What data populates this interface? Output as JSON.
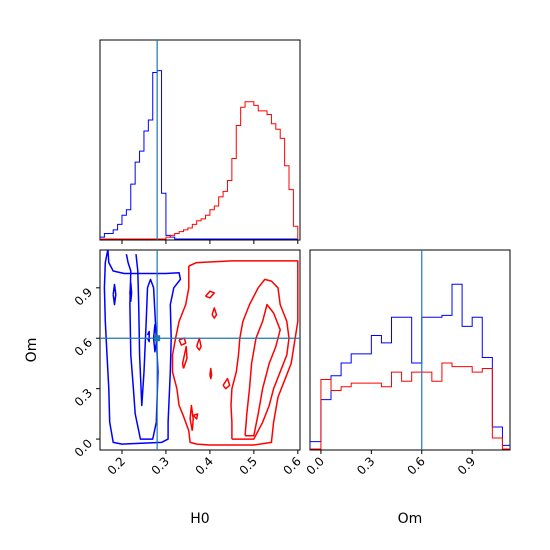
{
  "chart_data": {
    "type": "corner",
    "parameters": [
      "H0",
      "Om"
    ],
    "truths": {
      "H0": 0.28,
      "Om": 0.6
    },
    "colors": {
      "series_a": "#0000ff",
      "series_b": "#ff0000",
      "truth": "#1f77b4"
    },
    "axes": {
      "H0": {
        "label": "H0",
        "range": [
          0.15,
          0.605
        ],
        "ticks": [
          "0.2",
          "0.3",
          "0.4",
          "0.5",
          "0.6"
        ]
      },
      "Om": {
        "label": "Om",
        "range": [
          -0.065,
          1.125
        ],
        "ticks": [
          "0.0",
          "0.3",
          "0.6",
          "0.9"
        ]
      }
    },
    "hist_H0": {
      "bin_edges": [
        0.15,
        0.16,
        0.17,
        0.18,
        0.19,
        0.2,
        0.21,
        0.22,
        0.23,
        0.24,
        0.25,
        0.26,
        0.27,
        0.28,
        0.29,
        0.3,
        0.31,
        0.32,
        0.33,
        0.34,
        0.35,
        0.36,
        0.37,
        0.38,
        0.39,
        0.4,
        0.41,
        0.42,
        0.43,
        0.44,
        0.45,
        0.46,
        0.47,
        0.48,
        0.49,
        0.5,
        0.51,
        0.52,
        0.53,
        0.54,
        0.55,
        0.56,
        0.57,
        0.58,
        0.59,
        0.6
      ],
      "series": [
        {
          "values": [
            0.01,
            0.03,
            0.03,
            0.05,
            0.08,
            0.13,
            0.16,
            0.3,
            0.42,
            0.48,
            0.59,
            0.65,
            0.91,
            0.92,
            0.25,
            0.02,
            0.01,
            0,
            0,
            0,
            0,
            0,
            0,
            0,
            0,
            0,
            0,
            0,
            0,
            0,
            0,
            0,
            0,
            0,
            0,
            0,
            0,
            0,
            0,
            0,
            0,
            0,
            0,
            0,
            0
          ]
        },
        {
          "values": [
            0,
            0,
            0,
            0,
            0,
            0,
            0,
            0,
            0,
            0,
            0,
            0,
            0,
            0,
            0,
            0.01,
            0.02,
            0.03,
            0.04,
            0.05,
            0.06,
            0.08,
            0.1,
            0.11,
            0.13,
            0.16,
            0.18,
            0.23,
            0.26,
            0.32,
            0.44,
            0.62,
            0.72,
            0.75,
            0.75,
            0.73,
            0.7,
            0.7,
            0.68,
            0.63,
            0.6,
            0.55,
            0.4,
            0.27,
            0.07
          ]
        }
      ]
    },
    "hist_Om": {
      "bin_edges": [
        -0.065,
        0.0,
        0.06,
        0.12,
        0.18,
        0.24,
        0.3,
        0.36,
        0.42,
        0.48,
        0.54,
        0.6,
        0.66,
        0.72,
        0.78,
        0.84,
        0.9,
        0.96,
        1.02,
        1.08,
        1.125
      ],
      "series": [
        {
          "values": [
            0.04,
            0.27,
            0.4,
            0.47,
            0.52,
            0.52,
            0.62,
            0.58,
            0.72,
            0.72,
            0.47,
            0.72,
            0.72,
            0.73,
            0.9,
            0.67,
            0.72,
            0.5,
            0.12,
            0.02
          ]
        },
        {
          "values": [
            0,
            0.38,
            0.32,
            0.34,
            0.36,
            0.36,
            0.36,
            0.34,
            0.42,
            0.37,
            0.42,
            0.42,
            0.37,
            0.47,
            0.45,
            0.45,
            0.42,
            0.44,
            0.06,
            0
          ]
        }
      ]
    },
    "contours": [
      {
        "series": 0,
        "paths": [
          [
            [
              0.168,
              1.13
            ],
            [
              0.17,
              1.05
            ],
            [
              0.18,
              1.0
            ],
            [
              0.205,
              0.985
            ],
            [
              0.25,
              0.985
            ],
            [
              0.3,
              0.985
            ],
            [
              0.33,
              0.99
            ],
            [
              0.333,
              0.95
            ],
            [
              0.318,
              0.9
            ],
            [
              0.31,
              0.8
            ],
            [
              0.312,
              0.6
            ],
            [
              0.31,
              0.4
            ],
            [
              0.305,
              0.1
            ],
            [
              0.305,
              0.0
            ],
            [
              0.29,
              -0.02
            ],
            [
              0.2,
              -0.03
            ],
            [
              0.18,
              -0.02
            ],
            [
              0.172,
              0.1
            ],
            [
              0.17,
              0.3
            ],
            [
              0.166,
              0.5
            ],
            [
              0.162,
              0.7
            ],
            [
              0.16,
              0.9
            ],
            [
              0.162,
              1.05
            ],
            [
              0.168,
              1.13
            ]
          ],
          [
            [
              0.21,
              1.1
            ],
            [
              0.214,
              1.05
            ],
            [
              0.22,
              1.0
            ],
            [
              0.218,
              0.8
            ],
            [
              0.22,
              0.5
            ],
            [
              0.226,
              0.3
            ],
            [
              0.23,
              0.15
            ],
            [
              0.238,
              0.05
            ],
            [
              0.242,
              0.0
            ],
            [
              0.27,
              0.0
            ],
            [
              0.278,
              0.1
            ],
            [
              0.282,
              0.4
            ],
            [
              0.276,
              0.7
            ],
            [
              0.272,
              0.9
            ],
            [
              0.265,
              0.95
            ],
            [
              0.258,
              0.9
            ],
            [
              0.255,
              0.7
            ],
            [
              0.25,
              0.4
            ],
            [
              0.245,
              0.2
            ],
            [
              0.24,
              0.5
            ],
            [
              0.238,
              0.8
            ],
            [
              0.236,
              1.0
            ],
            [
              0.232,
              1.1
            ]
          ],
          [
            [
              0.272,
              0.6
            ],
            [
              0.275,
              0.68
            ],
            [
              0.28,
              0.6
            ],
            [
              0.275,
              0.52
            ],
            [
              0.272,
              0.6
            ]
          ],
          [
            [
              0.258,
              0.62
            ],
            [
              0.262,
              0.64
            ],
            [
              0.262,
              0.58
            ],
            [
              0.258,
              0.6
            ]
          ],
          [
            [
              0.18,
              0.86
            ],
            [
              0.183,
              0.92
            ],
            [
              0.186,
              0.86
            ],
            [
              0.183,
              0.8
            ],
            [
              0.18,
              0.86
            ]
          ],
          [
            [
              0.218,
              0.87
            ],
            [
              0.22,
              0.93
            ],
            [
              0.222,
              0.87
            ],
            [
              0.22,
              0.82
            ],
            [
              0.218,
              0.87
            ]
          ]
        ]
      },
      {
        "series": 1,
        "paths": [
          [
            [
              0.352,
              1.03
            ],
            [
              0.37,
              1.05
            ],
            [
              0.45,
              1.06
            ],
            [
              0.55,
              1.06
            ],
            [
              0.6,
              1.06
            ],
            [
              0.6,
              0.85
            ],
            [
              0.6,
              0.7
            ],
            [
              0.585,
              0.45
            ],
            [
              0.57,
              0.35
            ],
            [
              0.555,
              0.25
            ],
            [
              0.545,
              0.1
            ],
            [
              0.54,
              -0.02
            ],
            [
              0.5,
              -0.035
            ],
            [
              0.4,
              -0.035
            ],
            [
              0.37,
              -0.03
            ],
            [
              0.355,
              -0.02
            ],
            [
              0.352,
              0.05
            ],
            [
              0.338,
              0.15
            ],
            [
              0.33,
              0.2
            ],
            [
              0.325,
              0.3
            ],
            [
              0.315,
              0.4
            ],
            [
              0.315,
              0.5
            ],
            [
              0.322,
              0.6
            ],
            [
              0.33,
              0.7
            ],
            [
              0.345,
              0.8
            ],
            [
              0.352,
              0.9
            ],
            [
              0.352,
              1.03
            ]
          ],
          [
            [
              0.45,
              0.0
            ],
            [
              0.5,
              0.0
            ],
            [
              0.52,
              0.1
            ],
            [
              0.535,
              0.2
            ],
            [
              0.545,
              0.3
            ],
            [
              0.56,
              0.4
            ],
            [
              0.575,
              0.5
            ],
            [
              0.58,
              0.6
            ],
            [
              0.575,
              0.7
            ],
            [
              0.56,
              0.8
            ],
            [
              0.555,
              0.9
            ],
            [
              0.54,
              0.94
            ],
            [
              0.525,
              0.95
            ],
            [
              0.51,
              0.9
            ],
            [
              0.49,
              0.8
            ],
            [
              0.475,
              0.7
            ],
            [
              0.468,
              0.6
            ],
            [
              0.465,
              0.5
            ],
            [
              0.46,
              0.4
            ],
            [
              0.45,
              0.3
            ],
            [
              0.448,
              0.2
            ],
            [
              0.45,
              0.1
            ],
            [
              0.45,
              0.0
            ]
          ],
          [
            [
              0.48,
              0.02
            ],
            [
              0.5,
              0.02
            ],
            [
              0.51,
              0.15
            ],
            [
              0.52,
              0.3
            ],
            [
              0.535,
              0.45
            ],
            [
              0.55,
              0.55
            ],
            [
              0.56,
              0.65
            ],
            [
              0.545,
              0.75
            ],
            [
              0.53,
              0.8
            ],
            [
              0.52,
              0.7
            ],
            [
              0.505,
              0.6
            ],
            [
              0.495,
              0.45
            ],
            [
              0.49,
              0.3
            ],
            [
              0.484,
              0.15
            ],
            [
              0.48,
              0.02
            ]
          ],
          [
            [
              0.36,
              0.05
            ],
            [
              0.362,
              0.12
            ],
            [
              0.358,
              0.2
            ],
            [
              0.355,
              0.12
            ],
            [
              0.36,
              0.05
            ]
          ],
          [
            [
              0.34,
              0.42
            ],
            [
              0.348,
              0.48
            ],
            [
              0.346,
              0.55
            ],
            [
              0.338,
              0.45
            ],
            [
              0.34,
              0.42
            ]
          ],
          [
            [
              0.39,
              0.85
            ],
            [
              0.4,
              0.88
            ],
            [
              0.41,
              0.87
            ],
            [
              0.4,
              0.84
            ],
            [
              0.39,
              0.85
            ]
          ],
          [
            [
              0.405,
              0.74
            ],
            [
              0.41,
              0.78
            ],
            [
              0.415,
              0.74
            ],
            [
              0.41,
              0.72
            ],
            [
              0.405,
              0.74
            ]
          ],
          [
            [
              0.37,
              0.55
            ],
            [
              0.376,
              0.6
            ],
            [
              0.38,
              0.55
            ],
            [
              0.376,
              0.53
            ],
            [
              0.37,
              0.55
            ]
          ],
          [
            [
              0.43,
              0.32
            ],
            [
              0.44,
              0.36
            ],
            [
              0.445,
              0.32
            ],
            [
              0.436,
              0.3
            ],
            [
              0.43,
              0.32
            ]
          ],
          [
            [
              0.4,
              0.38
            ],
            [
              0.402,
              0.42
            ],
            [
              0.404,
              0.38
            ],
            [
              0.402,
              0.36
            ],
            [
              0.4,
              0.38
            ]
          ],
          [
            [
              0.362,
              0.14
            ],
            [
              0.372,
              0.15
            ],
            [
              0.37,
              0.12
            ],
            [
              0.362,
              0.14
            ]
          ],
          [
            [
              0.33,
              0.59
            ],
            [
              0.342,
              0.6
            ],
            [
              0.345,
              0.57
            ],
            [
              0.335,
              0.56
            ],
            [
              0.33,
              0.59
            ]
          ]
        ]
      }
    ]
  }
}
